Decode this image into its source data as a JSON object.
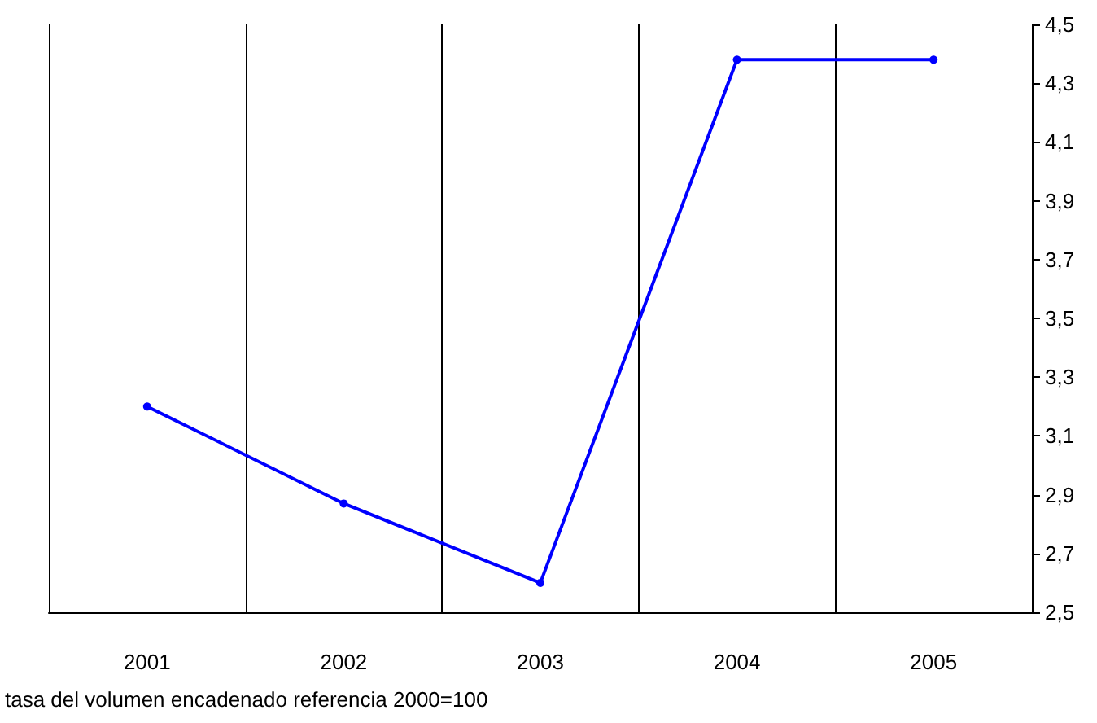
{
  "chart_data": {
    "type": "line",
    "categories": [
      "2001",
      "2002",
      "2003",
      "2004",
      "2005"
    ],
    "series": [
      {
        "color": "#0000ff",
        "values": [
          3.2,
          2.87,
          2.6,
          4.38,
          4.38
        ]
      }
    ],
    "ylim": [
      2.5,
      4.5
    ],
    "yticks": [
      {
        "value": 2.5,
        "label": "2,5"
      },
      {
        "value": 2.7,
        "label": "2,7"
      },
      {
        "value": 2.9,
        "label": "2,9"
      },
      {
        "value": 3.1,
        "label": "3,1"
      },
      {
        "value": 3.3,
        "label": "3,3"
      },
      {
        "value": 3.5,
        "label": "3,5"
      },
      {
        "value": 3.7,
        "label": "3,7"
      },
      {
        "value": 3.9,
        "label": "3,9"
      },
      {
        "value": 4.1,
        "label": "4,1"
      },
      {
        "value": 4.3,
        "label": "4,3"
      },
      {
        "value": 4.5,
        "label": "4,5"
      }
    ],
    "grid": "x",
    "marker": "circle",
    "line_style": "solid",
    "annotations": [
      "tasa del volumen encadenado referencia 2000=100"
    ]
  }
}
